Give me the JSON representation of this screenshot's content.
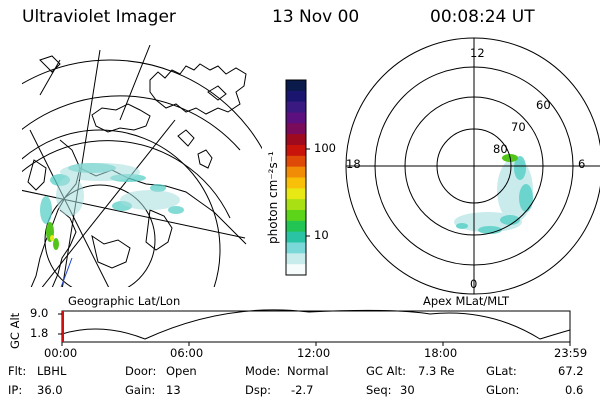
{
  "header": {
    "instrument": "Ultraviolet Imager",
    "date": "13 Nov 00",
    "time": "00:08:24 UT"
  },
  "colorbar": {
    "unit_label": "photon cm⁻²s⁻¹",
    "ticks": [
      "100",
      "10"
    ],
    "colors": [
      "#0a1a4a",
      "#1a1670",
      "#3a1a80",
      "#5c1080",
      "#7a0a5a",
      "#a00a1e",
      "#c8140a",
      "#e04a08",
      "#f08c06",
      "#f8c008",
      "#e8e814",
      "#a8e014",
      "#5cd41a",
      "#22c454",
      "#2ac4a4",
      "#7ad8d8",
      "#c8ecec",
      "#f6fbfb"
    ]
  },
  "left_map": {
    "label": "Geographic Lat/Lon"
  },
  "right_map": {
    "label": "Apex MLat/MLT",
    "mlt_labels": {
      "top": "12",
      "right": "6",
      "bottom": "0",
      "left": "18"
    },
    "lat_labels": [
      "60",
      "70",
      "80"
    ]
  },
  "altitude_plot": {
    "ylabel": "GC Alt",
    "yticks": [
      "9.0",
      "1.8"
    ],
    "xticks": [
      "00:00",
      "06:00",
      "12:00",
      "18:00",
      "23:59"
    ]
  },
  "status": {
    "flt": {
      "label": "Flt:",
      "value": "LBHL"
    },
    "ip": {
      "label": "IP:",
      "value": "36.0"
    },
    "door": {
      "label": "Door:",
      "value": "Open"
    },
    "gain": {
      "label": "Gain:",
      "value": "13"
    },
    "mode": {
      "label": "Mode:",
      "value": "Normal"
    },
    "dsp": {
      "label": "Dsp:",
      "value": "-2.7"
    },
    "gcalt": {
      "label": "GC Alt:",
      "value": "7.3 Re"
    },
    "seq": {
      "label": "Seq:",
      "value": "30"
    },
    "glat": {
      "label": "GLat:",
      "value": "67.2"
    },
    "glon": {
      "label": "GLon:",
      "value": "0.6"
    }
  }
}
